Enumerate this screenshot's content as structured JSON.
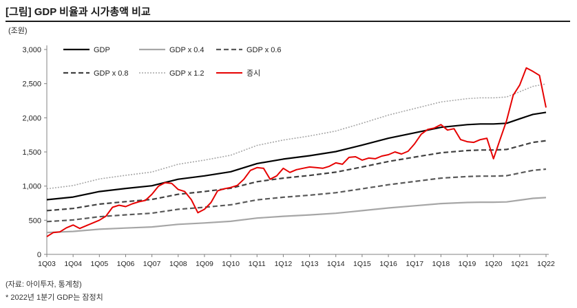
{
  "title": "[그림] GDP 비율과 시가총액 비교",
  "footnotes": {
    "source": "(자료: 아이투자, 통계청)",
    "note": "* 2022년 1분기 GDP는 잠정치"
  },
  "colors": {
    "gdp": "#000000",
    "gdp04": "#a6a6a6",
    "gdp06": "#595959",
    "gdp08": "#404040",
    "gdp12": "#a6a6a6",
    "market": "#e60000",
    "axis": "#808080"
  },
  "chart_data": {
    "type": "line",
    "ylabel": "(조원)",
    "ylim": [
      0,
      3000
    ],
    "yticks": [
      0,
      500,
      1000,
      1500,
      2000,
      2500,
      3000
    ],
    "ytick_labels": [
      "0",
      "500",
      "1,000",
      "1,500",
      "2,000",
      "2,500",
      "3,000"
    ],
    "xlim": [
      2003.0,
      2022.0
    ],
    "xticks": [
      2003,
      2004,
      2005,
      2006,
      2007,
      2008,
      2009,
      2010,
      2011,
      2012,
      2013,
      2014,
      2015,
      2016,
      2017,
      2018,
      2019,
      2020,
      2021,
      2022
    ],
    "xtick_labels": [
      "1Q03",
      "1Q04",
      "1Q05",
      "1Q06",
      "1Q07",
      "1Q08",
      "1Q09",
      "1Q10",
      "1Q11",
      "1Q12",
      "1Q13",
      "1Q14",
      "1Q15",
      "1Q16",
      "1Q17",
      "1Q18",
      "1Q19",
      "1Q20",
      "1Q21",
      "1Q22"
    ],
    "legend_placement": "top-left",
    "grid": false,
    "gdp": {
      "x": [
        2003,
        2004,
        2005,
        2006,
        2007,
        2008,
        2009,
        2010,
        2011,
        2012,
        2013,
        2014,
        2015,
        2016,
        2017,
        2018,
        2019,
        2019.5,
        2020,
        2020.5,
        2021,
        2021.5,
        2022
      ],
      "y": [
        800,
        840,
        920,
        965,
        1005,
        1100,
        1150,
        1210,
        1330,
        1395,
        1445,
        1505,
        1600,
        1700,
        1780,
        1860,
        1900,
        1910,
        1910,
        1920,
        1985,
        2050,
        2080
      ]
    },
    "series": [
      {
        "name": "GDP",
        "key": "gdp",
        "style": "solid",
        "width": 2.2,
        "multiplier": 1.0
      },
      {
        "name": "GDP x 0.4",
        "key": "gdp04",
        "style": "solid",
        "width": 2.2,
        "multiplier": 0.4
      },
      {
        "name": "GDP x 0.6",
        "key": "gdp06",
        "style": "dashed",
        "width": 2.2,
        "multiplier": 0.6
      },
      {
        "name": "GDP x 0.8",
        "key": "gdp08",
        "style": "dashed",
        "width": 2.2,
        "multiplier": 0.8
      },
      {
        "name": "GDP x 1.2",
        "key": "gdp12",
        "style": "dotted",
        "width": 1.6,
        "multiplier": 1.2
      },
      {
        "name": "증시",
        "key": "market",
        "style": "solid",
        "width": 2.0,
        "x": [
          2003,
          2003.25,
          2003.5,
          2003.75,
          2004,
          2004.25,
          2004.5,
          2004.75,
          2005,
          2005.25,
          2005.5,
          2005.75,
          2006,
          2006.25,
          2006.5,
          2006.75,
          2007,
          2007.25,
          2007.5,
          2007.75,
          2008,
          2008.25,
          2008.5,
          2008.75,
          2009,
          2009.25,
          2009.5,
          2009.75,
          2010,
          2010.25,
          2010.5,
          2010.75,
          2011,
          2011.25,
          2011.5,
          2011.75,
          2012,
          2012.25,
          2012.5,
          2012.75,
          2013,
          2013.25,
          2013.5,
          2013.75,
          2014,
          2014.25,
          2014.5,
          2014.75,
          2015,
          2015.25,
          2015.5,
          2015.75,
          2016,
          2016.25,
          2016.5,
          2016.75,
          2017,
          2017.25,
          2017.5,
          2017.75,
          2018,
          2018.25,
          2018.5,
          2018.75,
          2019,
          2019.25,
          2019.5,
          2019.75,
          2020,
          2020.25,
          2020.5,
          2020.75,
          2021,
          2021.25,
          2021.5,
          2021.75,
          2022
        ],
        "y": [
          260,
          320,
          330,
          390,
          430,
          380,
          420,
          460,
          500,
          560,
          690,
          720,
          700,
          740,
          770,
          790,
          880,
          1000,
          1050,
          1040,
          950,
          920,
          800,
          610,
          660,
          760,
          930,
          960,
          980,
          1010,
          1100,
          1230,
          1270,
          1260,
          1100,
          1150,
          1260,
          1200,
          1240,
          1260,
          1280,
          1270,
          1260,
          1290,
          1340,
          1320,
          1420,
          1430,
          1380,
          1410,
          1400,
          1440,
          1460,
          1500,
          1470,
          1510,
          1620,
          1760,
          1830,
          1850,
          1900,
          1820,
          1840,
          1680,
          1650,
          1640,
          1680,
          1700,
          1400,
          1680,
          1960,
          2330,
          2480,
          2730,
          2680,
          2620,
          2150
        ]
      }
    ]
  }
}
